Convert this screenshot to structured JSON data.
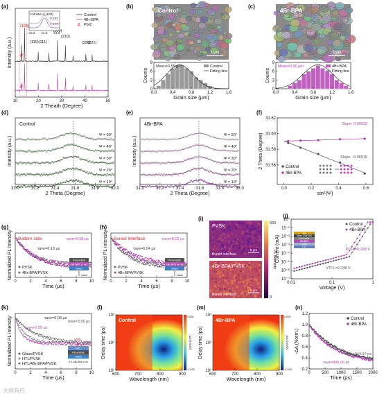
{
  "watermark": "大烯有约",
  "chart_data": [
    {
      "panel": "a",
      "type": "line",
      "xlabel": "2 Theath (Degree)",
      "ylabel": "Intensity (a.u.)",
      "xlim": [
        10,
        50
      ],
      "xticks": [
        "10",
        "20",
        "30",
        "40",
        "50"
      ],
      "legend": [
        "Control",
        "4Br-BPA",
        "PbI2"
      ],
      "peaks": [
        {
          "label": "(100)",
          "x": 14.0
        },
        {
          "label": "(110)(111)",
          "x": 20.0
        },
        {
          "label": "(200)",
          "x": 28.2
        },
        {
          "label": "(210)",
          "x": 31.6
        },
        {
          "label": "(220)",
          "x": 40.5
        },
        {
          "label": "(221)",
          "x": 43.1
        }
      ],
      "pbi2_marks": [
        12.7,
        12.7
      ],
      "series": [
        {
          "name": "Control",
          "color": "#333333",
          "peaks_x": [
            12.7,
            14.0,
            19.9,
            24.5,
            28.2,
            31.6,
            34.9,
            40.4,
            43.1
          ],
          "peaks_h": [
            0.45,
            0.9,
            0.25,
            0.22,
            0.55,
            0.42,
            0.15,
            0.2,
            0.18
          ]
        },
        {
          "name": "4Br-BPA",
          "color": "#b040b0",
          "peaks_x": [
            12.7,
            14.0,
            19.9,
            24.5,
            28.2,
            31.6,
            34.9,
            40.4,
            43.1
          ],
          "peaks_h": [
            0.2,
            0.72,
            0.2,
            0.18,
            0.45,
            0.35,
            0.12,
            0.16,
            0.14
          ]
        }
      ],
      "inset": {
        "title": "FWHM of (100)",
        "xticks": [
          "13.2",
          "14.0",
          "14.8"
        ],
        "values": [
          {
            "text": "0.163",
            "color": "#333333"
          },
          {
            "text": "0.109",
            "color": "#b040b0"
          }
        ]
      }
    },
    {
      "panel": "b",
      "type": "bar",
      "sem_label": "Control",
      "scale_bar": "1 μm",
      "xlabel": "Grain size (μm)",
      "ylabel": "Counts",
      "xlim": [
        0.0,
        1.6
      ],
      "xticks": [
        "0.0",
        "0.4",
        "0.8",
        "1.2",
        "1.6"
      ],
      "ylim": [
        0,
        9
      ],
      "yticks": [
        "0",
        "3",
        "6",
        "9"
      ],
      "mean_label": "Mean=0.55 μm",
      "legend": [
        "Control",
        "Fitting line"
      ],
      "bins": [
        0.1,
        0.2,
        0.3,
        0.4,
        0.5,
        0.6,
        0.7,
        0.8,
        0.9,
        1.0,
        1.1,
        1.2
      ],
      "values": [
        1,
        3,
        5,
        7,
        8,
        8,
        7,
        6,
        4,
        3,
        2,
        1
      ]
    },
    {
      "panel": "c",
      "type": "bar",
      "sem_label": "4Br-BPA",
      "scale_bar": "1 μm",
      "xlabel": "Grain size (μm)",
      "ylabel": "Counts",
      "xlim": [
        0.0,
        1.6
      ],
      "xticks": [
        "0.0",
        "0.4",
        "0.8",
        "1.2",
        "1.6"
      ],
      "ylim": [
        0,
        9
      ],
      "yticks": [
        "0",
        "3",
        "6",
        "9"
      ],
      "mean_label": "Mean=0.90 μm",
      "legend": [
        "4Br-BPA",
        "Fitting line"
      ],
      "bins": [
        0.3,
        0.4,
        0.5,
        0.6,
        0.7,
        0.8,
        0.9,
        1.0,
        1.1,
        1.2,
        1.3,
        1.4,
        1.5
      ],
      "values": [
        1,
        2,
        3,
        5,
        6,
        7,
        8,
        7,
        6,
        5,
        3,
        2,
        1
      ]
    },
    {
      "panel": "d",
      "type": "scatter",
      "title": "Control",
      "xlabel": "2 Theta (Degree)",
      "ylabel": "Intensity (a.u.)",
      "xlim": [
        31.0,
        32.0
      ],
      "xticks": [
        "31.0",
        "31.2",
        "31.4",
        "31.6",
        "31.8",
        "32.0"
      ],
      "psi_labels": [
        "Ψ = 50°",
        "Ψ = 40°",
        "Ψ = 30°",
        "Ψ = 20°",
        "Ψ = 10°"
      ],
      "peak_x": [
        31.56,
        31.565,
        31.57,
        31.575,
        31.58
      ],
      "dashed_x": 31.58
    },
    {
      "panel": "e",
      "type": "scatter",
      "title": "4Br-BPA",
      "xlabel": "2 Theta (Degree)",
      "ylabel": "Intensity (a.u.)",
      "xlim": [
        31.0,
        32.0
      ],
      "xticks": [
        "31.0",
        "31.2",
        "31.4",
        "31.6",
        "31.8",
        "32.0"
      ],
      "psi_labels": [
        "Ψ = 50°",
        "Ψ = 40°",
        "Ψ = 30°",
        "Ψ = 20°",
        "Ψ = 10°"
      ],
      "peak_x": [
        31.59,
        31.59,
        31.59,
        31.59,
        31.59
      ],
      "dashed_x": 31.59
    },
    {
      "panel": "f",
      "type": "scatter",
      "xlabel": "sin²(Ψ)",
      "ylabel": "2 Theta (Degree)",
      "xlim": [
        -0.05,
        0.65
      ],
      "xticks": [
        "0.0",
        "0.2",
        "0.4",
        "0.6"
      ],
      "ylim": [
        31.535,
        31.62
      ],
      "yticks": [
        "31.56",
        "31.58",
        "31.60",
        "31.62"
      ],
      "yticks_values": [
        31.56,
        31.58,
        31.6,
        31.62
      ],
      "slope_labels": [
        {
          "text": "Slope: 0.00632",
          "color": "#b040b0"
        },
        {
          "text": "Slope: -0.06515",
          "color": "#555555"
        }
      ],
      "legend": [
        "Control",
        "4Br-BPA"
      ],
      "series": [
        {
          "name": "Control",
          "color": "#555555",
          "x": [
            0.03,
            0.12,
            0.25,
            0.41,
            0.59
          ],
          "y": [
            31.588,
            31.582,
            31.574,
            31.563,
            31.549
          ]
        },
        {
          "name": "4Br-BPA",
          "color": "#b040b0",
          "x": [
            0.03,
            0.12,
            0.25,
            0.41,
            0.59
          ],
          "y": [
            31.5905,
            31.591,
            31.5915,
            31.5928,
            31.5935
          ]
        }
      ]
    },
    {
      "panel": "g",
      "type": "scatter",
      "annotation": "Bottom side",
      "xlabel": "Time (μs)",
      "ylabel": "Normalized PL intensity",
      "xlim": [
        0,
        10
      ],
      "xticks": [
        "0",
        "2",
        "4",
        "6",
        "8",
        "10"
      ],
      "tau_labels": [
        {
          "text": "τave=6.08 μs",
          "color": "#b040b0"
        },
        {
          "text": "τave=6.13 μs",
          "color": "#333333"
        }
      ],
      "legend": [
        "PVSK",
        "4Br-BPA/PVSK"
      ],
      "stack": [
        "Perovskite",
        "4Br-BPA or not",
        "Glass",
        "Laser"
      ]
    },
    {
      "panel": "h",
      "type": "scatter",
      "annotation": "Buried interface",
      "xlabel": "Time (μs)",
      "ylabel": "Normalized PL intensity",
      "xlim": [
        0,
        10
      ],
      "xticks": [
        "0",
        "2",
        "4",
        "6",
        "8",
        "10"
      ],
      "tau_labels": [
        {
          "text": "τave=8.02 μs",
          "color": "#b040b0"
        },
        {
          "text": "τave=6.04 μs",
          "color": "#333333"
        }
      ],
      "legend": [
        "PVSK",
        "4Br-BPA/PVSK"
      ],
      "stack": [
        "Perovskite",
        "4Br-BPA or not",
        "Glass",
        "Laser"
      ]
    },
    {
      "panel": "i",
      "type": "heatmap",
      "maps": [
        {
          "label": "PVSK",
          "sub": "Buried interface",
          "scale": "5 μm"
        },
        {
          "label": "4Br-BPA/PVSK",
          "sub": "Buried interface",
          "scale": "5 μm"
        }
      ],
      "colorbar_label": "PL intensity",
      "colorbar_ticks": [
        "600",
        "0"
      ]
    },
    {
      "panel": "j",
      "type": "line",
      "xlabel": "Voltage (V)",
      "ylabel": "Current (mA)",
      "xlim_log": [
        0.01,
        1.5
      ],
      "xticks": [
        "0.01",
        "0.1",
        "1"
      ],
      "yticks": [
        "10⁻⁷",
        "10⁻⁶",
        "10⁻⁵",
        "10⁻⁴",
        "10⁻³",
        "10⁻²",
        "10⁻¹",
        "10⁰"
      ],
      "legend": [
        "Control",
        "4Br-BPA"
      ],
      "vtfl_labels": [
        {
          "text": "VTFL=0.298 V",
          "color": "#b040b0"
        },
        {
          "text": "VTFL=0.348 V",
          "color": "#555555"
        }
      ],
      "stack": [
        "Au",
        "Spiro-OMeTAD",
        "Perovskite",
        "4Br-BPA",
        "SnO2",
        "ITO"
      ]
    },
    {
      "panel": "k",
      "type": "scatter",
      "xlabel": "Time (μs)",
      "ylabel": "Normalized PL intensity",
      "xlim": [
        0,
        10
      ],
      "xticks": [
        "0",
        "2",
        "4",
        "6",
        "8",
        "10"
      ],
      "tau_labels": [
        {
          "text": "τave=6.03 μs",
          "color": "#333333"
        },
        {
          "text": "τave=3.56 μs",
          "color": "#555555"
        },
        {
          "text": "τave=2.55 μs",
          "color": "#b040b0"
        }
      ],
      "legend": [
        "Glass/PVSK",
        "HTL/PVSK",
        "HTL/4Br-BPA/PVSK"
      ],
      "stack": [
        "Laser",
        "HTL",
        "Perovskite",
        "Glass",
        "HTL/4Br-BPA or not"
      ]
    },
    {
      "panel": "l",
      "type": "heatmap",
      "title": "Control",
      "xlabel": "Wavelength (nm)",
      "ylabel": "Delay time (ps)",
      "xticks": [
        "600",
        "700",
        "800",
        "900"
      ],
      "yticks": [
        "10¹",
        "10²",
        "10³"
      ],
      "colorbar_ticks": [
        "0.005",
        "-0.025"
      ],
      "colorbar_label": "ΔA (mOD)"
    },
    {
      "panel": "m",
      "type": "heatmap",
      "title": "4Br-BPA",
      "xlabel": "Wavelength (nm)",
      "ylabel": "Delay time (ps)",
      "xticks": [
        "600",
        "700",
        "800",
        "900"
      ],
      "yticks": [
        "10¹",
        "10²",
        "10³"
      ],
      "colorbar_ticks": [
        "0.005",
        "-0.025"
      ],
      "colorbar_label": "ΔA (mOD)"
    },
    {
      "panel": "n",
      "type": "scatter",
      "xlabel": "Time (ps)",
      "ylabel": "-ΔA (Norm.)",
      "xlim": [
        0,
        2000
      ],
      "xticks": [
        "0",
        "500",
        "1000",
        "1500",
        "2000"
      ],
      "ylim": [
        0.2,
        1.2
      ],
      "yticks": [
        "0.2",
        "0.4",
        "0.6",
        "0.8",
        "1.0",
        "1.2"
      ],
      "legend": [
        "Control",
        "4Br-BPA"
      ],
      "tau_labels": [
        {
          "text": "τave=944.97 ps",
          "color": "#555555"
        },
        {
          "text": "τave=806.06 ps",
          "color": "#b040b0"
        }
      ]
    }
  ]
}
